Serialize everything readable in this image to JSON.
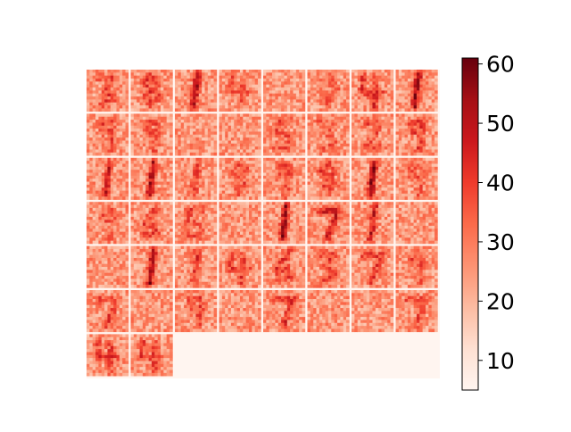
{
  "chart_data": {
    "type": "heatmap",
    "title": "",
    "description_grid": {
      "rows": 7,
      "cols": 8,
      "filled_tiles": 50
    },
    "tiles": [
      {
        "digit": "3",
        "intensity": 0.45
      },
      {
        "digit": "8",
        "intensity": 0.45
      },
      {
        "digit": "1",
        "intensity": 0.85
      },
      {
        "digit": "4",
        "intensity": 0.3
      },
      {
        "digit": "",
        "intensity": 0.2
      },
      {
        "digit": "0",
        "intensity": 0.3
      },
      {
        "digit": "4",
        "intensity": 0.55
      },
      {
        "digit": "1",
        "intensity": 0.9
      },
      {
        "digit": "9",
        "intensity": 0.4
      },
      {
        "digit": "9",
        "intensity": 0.35
      },
      {
        "digit": "",
        "intensity": 0.2
      },
      {
        "digit": "",
        "intensity": 0.15
      },
      {
        "digit": "5",
        "intensity": 0.35
      },
      {
        "digit": "3",
        "intensity": 0.3
      },
      {
        "digit": "2",
        "intensity": 0.35
      },
      {
        "digit": "9",
        "intensity": 0.45
      },
      {
        "digit": "1",
        "intensity": 0.7
      },
      {
        "digit": "1",
        "intensity": 0.85
      },
      {
        "digit": "1",
        "intensity": 0.45
      },
      {
        "digit": "8",
        "intensity": 0.35
      },
      {
        "digit": "9",
        "intensity": 0.4
      },
      {
        "digit": "8",
        "intensity": 0.4
      },
      {
        "digit": "1",
        "intensity": 1.0
      },
      {
        "digit": "9",
        "intensity": 0.35
      },
      {
        "digit": "9",
        "intensity": 0.3
      },
      {
        "digit": "6",
        "intensity": 0.45
      },
      {
        "digit": "5",
        "intensity": 0.4
      },
      {
        "digit": "",
        "intensity": 0.2
      },
      {
        "digit": "1",
        "intensity": 0.95
      },
      {
        "digit": "7",
        "intensity": 0.7
      },
      {
        "digit": "1",
        "intensity": 0.75
      },
      {
        "digit": "",
        "intensity": 0.2
      },
      {
        "digit": "",
        "intensity": 0.2
      },
      {
        "digit": "1",
        "intensity": 0.95
      },
      {
        "digit": "1",
        "intensity": 0.5
      },
      {
        "digit": "4",
        "intensity": 0.45
      },
      {
        "digit": "6",
        "intensity": 0.55
      },
      {
        "digit": "3",
        "intensity": 0.45
      },
      {
        "digit": "7",
        "intensity": 0.45
      },
      {
        "digit": "9",
        "intensity": 0.35
      },
      {
        "digit": "7",
        "intensity": 0.45
      },
      {
        "digit": "",
        "intensity": 0.2
      },
      {
        "digit": "9",
        "intensity": 0.45
      },
      {
        "digit": "",
        "intensity": 0.2
      },
      {
        "digit": "7",
        "intensity": 0.55
      },
      {
        "digit": "",
        "intensity": 0.2
      },
      {
        "digit": "",
        "intensity": 0.2
      },
      {
        "digit": "7",
        "intensity": 0.4
      },
      {
        "digit": "4",
        "intensity": 0.45
      },
      {
        "digit": "4",
        "intensity": 0.45
      }
    ],
    "colorbar": {
      "colormap": "Reds",
      "vmin": 5,
      "vmax": 61,
      "ticks": [
        10,
        20,
        30,
        40,
        50,
        60
      ],
      "tick_labels": [
        "10",
        "20",
        "30",
        "40",
        "50",
        "60"
      ]
    },
    "grid": false,
    "legend": "right"
  }
}
